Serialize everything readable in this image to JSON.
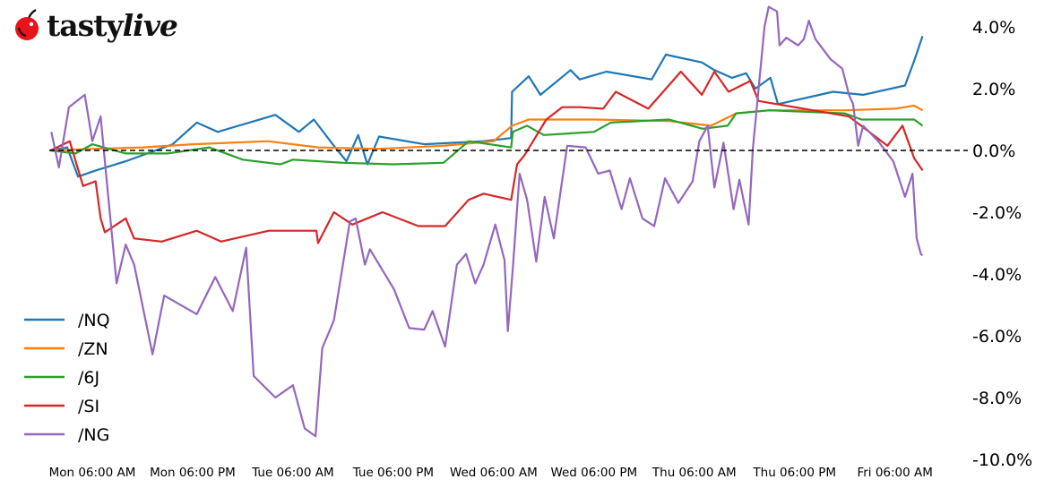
{
  "logo": {
    "part1": "tasty",
    "part2": "live",
    "full": "tastylive"
  },
  "chart_data": {
    "type": "line",
    "title": "",
    "xlabel": "",
    "ylabel": "",
    "x_units": "hours since Mon 00:00",
    "xlim": [
      0.9,
      105.3
    ],
    "ylim": [
      -10,
      4.6
    ],
    "grid": false,
    "legend_position": "lower-left",
    "y_axis_side": "right",
    "reference_line": {
      "value": 0,
      "style": "dashed",
      "color": "#000000"
    },
    "yticks": [
      {
        "value": 4,
        "label": "4.0%"
      },
      {
        "value": 2,
        "label": "2.0%"
      },
      {
        "value": 0,
        "label": "0.0%"
      },
      {
        "value": -2,
        "label": "-2.0%"
      },
      {
        "value": -4,
        "label": "-4.0%"
      },
      {
        "value": -6,
        "label": "-6.0%"
      },
      {
        "value": -8,
        "label": "-8.0%"
      },
      {
        "value": -10,
        "label": "-10.0%"
      }
    ],
    "xticks": [
      {
        "value": 6,
        "label": "Mon 06:00 AM"
      },
      {
        "value": 18,
        "label": "Mon 06:00 PM"
      },
      {
        "value": 30,
        "label": "Tue 06:00 AM"
      },
      {
        "value": 42,
        "label": "Tue 06:00 PM"
      },
      {
        "value": 54,
        "label": "Wed 06:00 AM"
      },
      {
        "value": 66,
        "label": "Wed 06:00 PM"
      },
      {
        "value": 78,
        "label": "Thu 06:00 AM"
      },
      {
        "value": 90,
        "label": "Thu 06:00 PM"
      },
      {
        "value": 102,
        "label": "Fri 06:00 AM"
      }
    ],
    "series": [
      {
        "name": "/NQ",
        "color": "#1f77b4",
        "points": [
          [
            1,
            0
          ],
          [
            3,
            0.1
          ],
          [
            4.3,
            -0.85
          ],
          [
            6.4,
            -0.65
          ],
          [
            10,
            -0.35
          ],
          [
            15.6,
            0.2
          ],
          [
            18.5,
            0.9
          ],
          [
            21,
            0.6
          ],
          [
            27.9,
            1.15
          ],
          [
            30.7,
            0.6
          ],
          [
            32.5,
            1.0
          ],
          [
            34.9,
            0.15
          ],
          [
            36.4,
            -0.35
          ],
          [
            37.8,
            0.5
          ],
          [
            38.9,
            -0.45
          ],
          [
            40.3,
            0.45
          ],
          [
            45.7,
            0.2
          ],
          [
            52.8,
            0.3
          ],
          [
            56.1,
            0.4
          ],
          [
            56.2,
            1.9
          ],
          [
            58.2,
            2.4
          ],
          [
            59.6,
            1.8
          ],
          [
            63.2,
            2.6
          ],
          [
            64.3,
            2.3
          ],
          [
            67.5,
            2.55
          ],
          [
            72.9,
            2.3
          ],
          [
            74.6,
            3.1
          ],
          [
            78.9,
            2.85
          ],
          [
            80.4,
            2.6
          ],
          [
            82.5,
            2.35
          ],
          [
            84.2,
            2.5
          ],
          [
            85.3,
            2.0
          ],
          [
            87.1,
            2.35
          ],
          [
            88,
            1.5
          ],
          [
            94.6,
            1.9
          ],
          [
            98.2,
            1.8
          ],
          [
            103.2,
            2.1
          ],
          [
            104.3,
            2.9
          ],
          [
            105.3,
            3.7
          ]
        ]
      },
      {
        "name": "/ZN",
        "color": "#ff7f0e",
        "points": [
          [
            1,
            0
          ],
          [
            6,
            0.05
          ],
          [
            12,
            0.1
          ],
          [
            18,
            0.2
          ],
          [
            27,
            0.3
          ],
          [
            33,
            0.1
          ],
          [
            40,
            0.05
          ],
          [
            48,
            0.15
          ],
          [
            54,
            0.3
          ],
          [
            56.2,
            0.8
          ],
          [
            58.2,
            1.0
          ],
          [
            66,
            1.0
          ],
          [
            75,
            0.95
          ],
          [
            80,
            0.8
          ],
          [
            83,
            1.2
          ],
          [
            87,
            1.3
          ],
          [
            96,
            1.3
          ],
          [
            102,
            1.35
          ],
          [
            104.3,
            1.45
          ],
          [
            105.3,
            1.3
          ]
        ]
      },
      {
        "name": "/6J",
        "color": "#2ca02c",
        "points": [
          [
            1,
            0
          ],
          [
            4,
            -0.1
          ],
          [
            6,
            0.2
          ],
          [
            10,
            -0.1
          ],
          [
            15,
            -0.1
          ],
          [
            20,
            0.1
          ],
          [
            24,
            -0.3
          ],
          [
            28.5,
            -0.45
          ],
          [
            30,
            -0.3
          ],
          [
            36,
            -0.4
          ],
          [
            42,
            -0.45
          ],
          [
            48,
            -0.4
          ],
          [
            49.3,
            -0.1
          ],
          [
            51,
            0.3
          ],
          [
            56.1,
            0.1
          ],
          [
            56.3,
            0.6
          ],
          [
            58,
            0.8
          ],
          [
            60,
            0.5
          ],
          [
            66,
            0.6
          ],
          [
            68,
            0.9
          ],
          [
            75,
            1.0
          ],
          [
            79,
            0.7
          ],
          [
            82,
            0.8
          ],
          [
            83,
            1.2
          ],
          [
            87,
            1.3
          ],
          [
            96,
            1.2
          ],
          [
            98,
            1.0
          ],
          [
            102,
            1.0
          ],
          [
            104.3,
            1.0
          ],
          [
            105.3,
            0.8
          ]
        ]
      },
      {
        "name": "/SI",
        "color": "#d62728",
        "points": [
          [
            1,
            0
          ],
          [
            3.3,
            0.3
          ],
          [
            4.9,
            -1.15
          ],
          [
            6.4,
            -1.0
          ],
          [
            7,
            -2.2
          ],
          [
            7.5,
            -2.65
          ],
          [
            10,
            -2.2
          ],
          [
            11,
            -2.85
          ],
          [
            14.3,
            -2.95
          ],
          [
            18.5,
            -2.6
          ],
          [
            21.4,
            -2.95
          ],
          [
            27.1,
            -2.6
          ],
          [
            32.8,
            -2.6
          ],
          [
            33,
            -3.0
          ],
          [
            34.9,
            -2.0
          ],
          [
            37.1,
            -2.4
          ],
          [
            40.7,
            -2.0
          ],
          [
            45,
            -2.45
          ],
          [
            48.2,
            -2.45
          ],
          [
            51,
            -1.6
          ],
          [
            52.8,
            -1.4
          ],
          [
            56.1,
            -1.6
          ],
          [
            56.8,
            -0.45
          ],
          [
            57.7,
            -0.15
          ],
          [
            60.3,
            1.0
          ],
          [
            62.2,
            1.4
          ],
          [
            64.3,
            1.4
          ],
          [
            67.1,
            1.35
          ],
          [
            68.6,
            1.9
          ],
          [
            72.5,
            1.35
          ],
          [
            76.4,
            2.55
          ],
          [
            78.9,
            1.8
          ],
          [
            80.4,
            2.55
          ],
          [
            82.1,
            1.9
          ],
          [
            84.7,
            2.25
          ],
          [
            85.7,
            1.6
          ],
          [
            91.1,
            1.35
          ],
          [
            96.5,
            1.1
          ],
          [
            101.1,
            0.15
          ],
          [
            102.9,
            0.8
          ],
          [
            104.3,
            -0.25
          ],
          [
            105.3,
            -0.65
          ]
        ]
      },
      {
        "name": "/NG",
        "color": "#9467bd",
        "points": [
          [
            1.1,
            0.6
          ],
          [
            2.0,
            -0.55
          ],
          [
            3.2,
            1.4
          ],
          [
            5.1,
            1.8
          ],
          [
            6,
            0.3
          ],
          [
            7,
            1.1
          ],
          [
            7.8,
            -1.2
          ],
          [
            8.9,
            -4.3
          ],
          [
            10,
            -3.05
          ],
          [
            11,
            -3.7
          ],
          [
            13.2,
            -6.6
          ],
          [
            14.6,
            -4.7
          ],
          [
            18.5,
            -5.3
          ],
          [
            20.7,
            -4.1
          ],
          [
            22.8,
            -5.2
          ],
          [
            24.4,
            -3.15
          ],
          [
            25.3,
            -7.3
          ],
          [
            27.9,
            -8.0
          ],
          [
            30,
            -7.6
          ],
          [
            31.4,
            -9.0
          ],
          [
            32.7,
            -9.25
          ],
          [
            33.5,
            -6.4
          ],
          [
            34.9,
            -5.5
          ],
          [
            36.8,
            -2.3
          ],
          [
            37.5,
            -2.2
          ],
          [
            38.6,
            -3.7
          ],
          [
            39.2,
            -3.2
          ],
          [
            42.1,
            -4.5
          ],
          [
            43.9,
            -5.75
          ],
          [
            45.7,
            -5.8
          ],
          [
            46.7,
            -5.2
          ],
          [
            48.2,
            -6.35
          ],
          [
            49.6,
            -3.7
          ],
          [
            50.7,
            -3.35
          ],
          [
            51.8,
            -4.3
          ],
          [
            52.8,
            -3.7
          ],
          [
            54.2,
            -2.4
          ],
          [
            55.3,
            -3.55
          ],
          [
            55.7,
            -5.85
          ],
          [
            56.3,
            -3.8
          ],
          [
            57.1,
            -0.75
          ],
          [
            58.0,
            -1.6
          ],
          [
            59.1,
            -3.6
          ],
          [
            60.1,
            -1.5
          ],
          [
            61.2,
            -2.85
          ],
          [
            62.8,
            0.15
          ],
          [
            65,
            0.1
          ],
          [
            66.5,
            -0.75
          ],
          [
            67.9,
            -0.65
          ],
          [
            69.3,
            -1.9
          ],
          [
            70.3,
            -0.9
          ],
          [
            71.8,
            -2.2
          ],
          [
            73.2,
            -2.45
          ],
          [
            74.5,
            -0.9
          ],
          [
            76.1,
            -1.7
          ],
          [
            77.8,
            -1.0
          ],
          [
            78.6,
            0.3
          ],
          [
            79.6,
            0.8
          ],
          [
            80.4,
            -1.2
          ],
          [
            81.5,
            0.25
          ],
          [
            82.7,
            -1.9
          ],
          [
            83.4,
            -0.95
          ],
          [
            84.5,
            -2.4
          ],
          [
            85,
            0.05
          ],
          [
            86.4,
            4.0
          ],
          [
            86.9,
            4.65
          ],
          [
            87.9,
            4.5
          ],
          [
            88.2,
            3.4
          ],
          [
            89,
            3.65
          ],
          [
            90.4,
            3.4
          ],
          [
            91.1,
            3.6
          ],
          [
            91.7,
            4.2
          ],
          [
            92.5,
            3.6
          ],
          [
            94.3,
            2.95
          ],
          [
            95.7,
            2.65
          ],
          [
            96.5,
            1.8
          ],
          [
            97,
            1.5
          ],
          [
            97.6,
            0.15
          ],
          [
            98.2,
            0.8
          ],
          [
            100,
            0.3
          ],
          [
            101.8,
            -0.35
          ],
          [
            103.2,
            -1.5
          ],
          [
            104.1,
            -0.75
          ],
          [
            104.6,
            -2.85
          ],
          [
            105.1,
            -3.35
          ],
          [
            105.3,
            -3.4
          ]
        ]
      }
    ]
  }
}
